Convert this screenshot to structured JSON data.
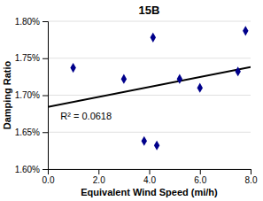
{
  "chart_data": {
    "type": "scatter",
    "title": "15B",
    "xlabel": "Equivalent Wind Speed (mi/h)",
    "ylabel": "Damping Ratio",
    "series": [
      {
        "type": "line",
        "color": "#000000",
        "line_style": "solid",
        "x": [
          0.0,
          8.0
        ],
        "values": [
          1.684,
          1.738
        ]
      },
      {
        "type": "scatter",
        "color": "#00008B",
        "marker": "diamond",
        "x": [
          1.0,
          3.0,
          3.8,
          4.15,
          4.3,
          5.2,
          6.0,
          7.5,
          7.8
        ],
        "values": [
          1.737,
          1.722,
          1.638,
          1.778,
          1.632,
          1.722,
          1.71,
          1.732,
          1.787
        ]
      }
    ],
    "annotations": [
      {
        "text": "R² = 0.0618",
        "x": 0.5,
        "y": 1.667
      }
    ],
    "xlim": [
      0.0,
      8.0
    ],
    "ylim": [
      1.6,
      1.8
    ],
    "xticks": [
      {
        "value": 0.0,
        "label": "0.0"
      },
      {
        "value": 2.0,
        "label": "2.0"
      },
      {
        "value": 4.0,
        "label": "4.0"
      },
      {
        "value": 6.0,
        "label": "6.0"
      },
      {
        "value": 8.0,
        "label": "8.0"
      }
    ],
    "yticks": [
      {
        "value": 1.6,
        "label": "1.60%"
      },
      {
        "value": 1.65,
        "label": "1.65%"
      },
      {
        "value": 1.7,
        "label": "1.70%"
      },
      {
        "value": 1.75,
        "label": "1.75%"
      },
      {
        "value": 1.8,
        "label": "1.80%"
      }
    ],
    "grid": "y"
  }
}
